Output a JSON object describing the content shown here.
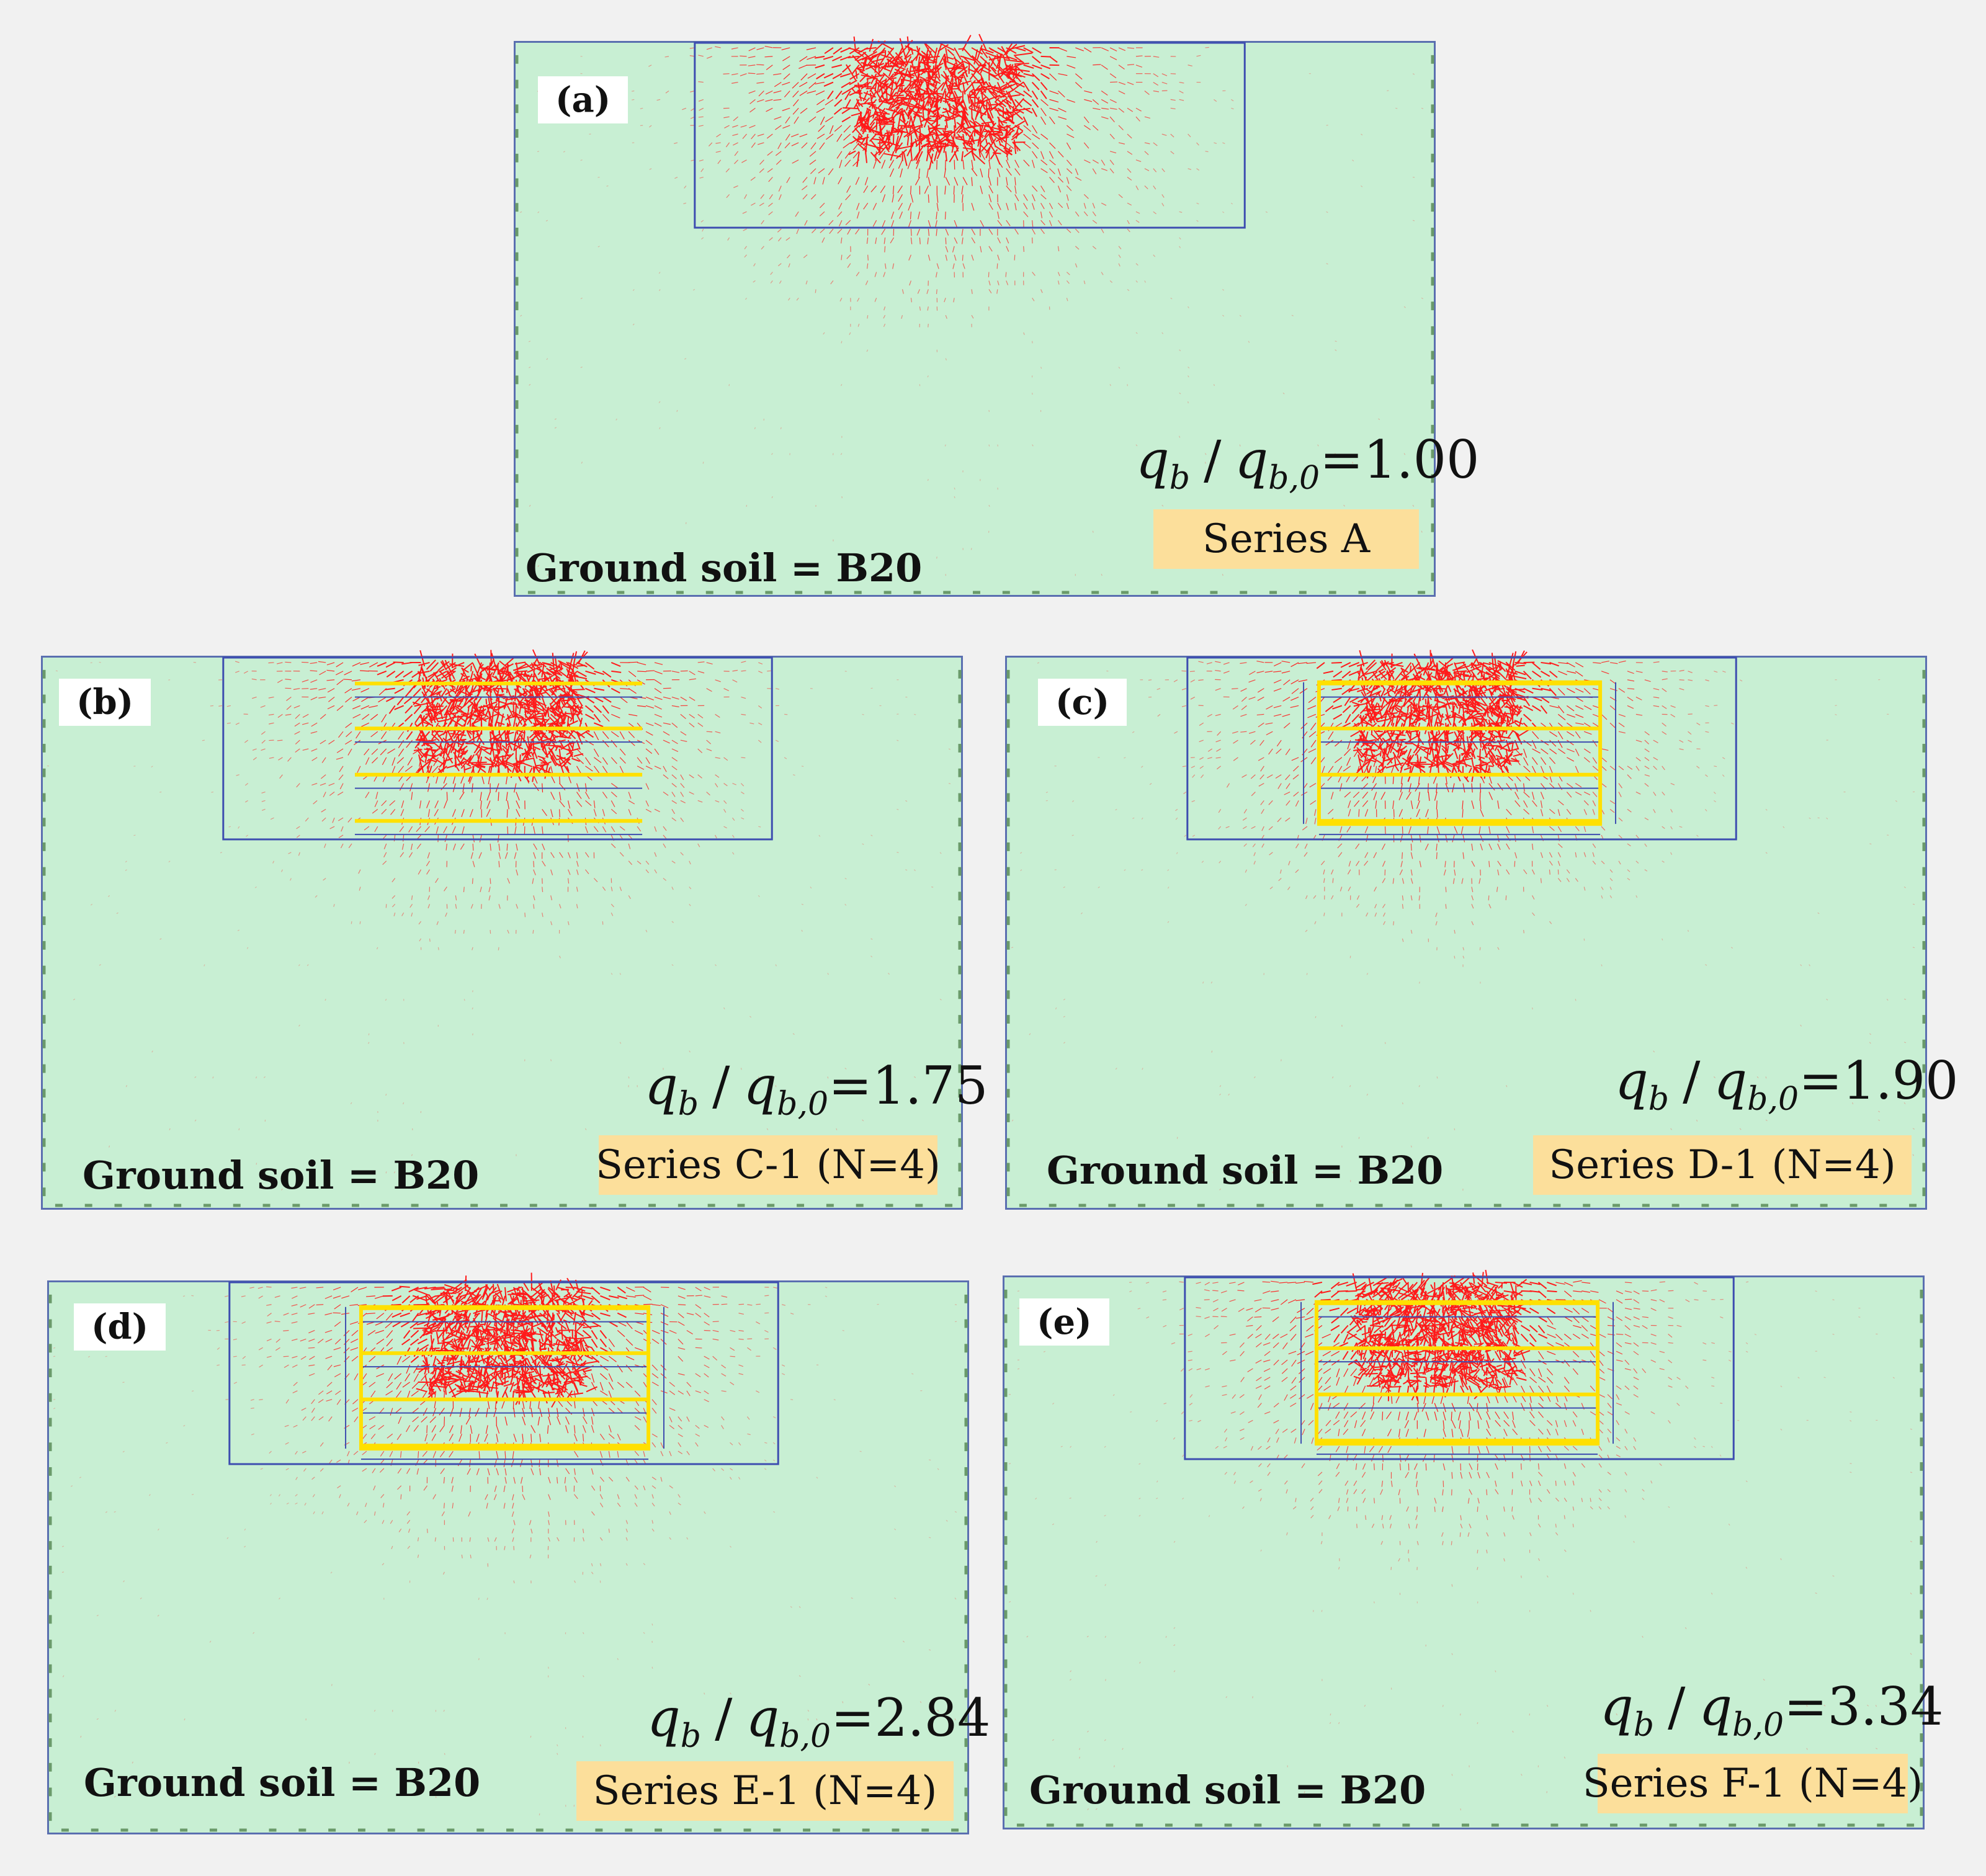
{
  "colors": {
    "soil": "#c8efd3",
    "vector": "#ff1a1a",
    "reinforcement": "#ffe000",
    "mesh": "#3d4db0",
    "label_box": "#fcdf9b"
  },
  "ratio_symbols": {
    "q": "q",
    "sub_b": "b",
    "sub_b0": "b,0"
  },
  "panels": [
    {
      "id": "a",
      "label": "(a)",
      "ratio_value": "=1.00",
      "series": "Series A",
      "ground_soil": "Ground soil = B20",
      "reinforcement_layers": 0,
      "reinforced_zone": false
    },
    {
      "id": "b",
      "label": "(b)",
      "ratio_value": "=1.75",
      "series": "Series C-1 (N=4)",
      "ground_soil": "Ground soil = B20",
      "reinforcement_layers": 4,
      "reinforced_zone": false
    },
    {
      "id": "c",
      "label": "(c)",
      "ratio_value": "=1.90",
      "series": "Series D-1 (N=4)",
      "ground_soil": "Ground soil = B20",
      "reinforcement_layers": 4,
      "reinforced_zone": true
    },
    {
      "id": "d",
      "label": "(d)",
      "ratio_value": "=2.84",
      "series": "Series E-1 (N=4)",
      "ground_soil": "Ground soil = B20",
      "reinforcement_layers": 4,
      "reinforced_zone": true
    },
    {
      "id": "e",
      "label": "(e)",
      "ratio_value": "=3.34",
      "series": "Series F-1 (N=4)",
      "ground_soil": "Ground soil = B20",
      "reinforcement_layers": 4,
      "reinforced_zone": true
    }
  ]
}
